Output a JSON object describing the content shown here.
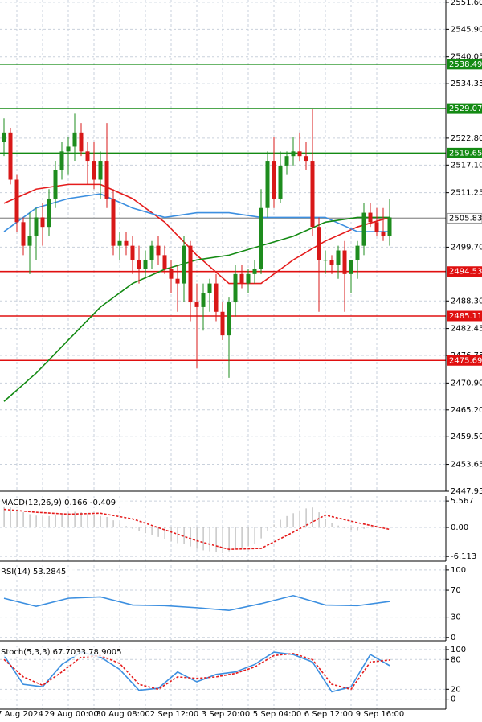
{
  "chart_data": [
    {
      "type": "candlestick",
      "categories": [
        null,
        null,
        "7 Aug 2024",
        null,
        null,
        null,
        null,
        null,
        null,
        null,
        "29 Aug 00:00",
        null,
        null,
        null,
        null,
        null,
        null,
        null,
        "30 Aug 08:00",
        null,
        null,
        null,
        null,
        null,
        null,
        null,
        "2 Sep 12:00",
        null,
        null,
        null,
        null,
        null,
        null,
        null,
        "3 Sep 20:00",
        null,
        null,
        null,
        null,
        null,
        null,
        null,
        "5 Sep 04:00",
        null,
        null,
        null,
        null,
        null,
        null,
        null,
        "6 Sep 12:00",
        null,
        null,
        null,
        null,
        null,
        null,
        null,
        "9 Sep 16:00",
        null,
        null
      ],
      "open": [
        2522,
        2524,
        2514,
        2505,
        2500,
        2502,
        2506,
        2504,
        2510,
        2516,
        2520,
        2521,
        2524,
        2520,
        2518,
        2514,
        2518,
        2510,
        2500,
        2501,
        2500,
        2497,
        2495,
        2497,
        2500,
        2498,
        2495,
        2493,
        2492,
        2500,
        2488,
        2487,
        2490,
        2492,
        2486,
        2481,
        2488,
        2494,
        2492,
        2494,
        2495,
        2508,
        2518,
        2510,
        2517,
        2519,
        2520,
        2519,
        2518,
        2504,
        2497,
        2497,
        2496,
        2499,
        2494,
        2497,
        2500,
        2507,
        2505,
        2503,
        2502
      ],
      "high": [
        2527,
        2525,
        2515,
        2506,
        2507,
        2508,
        2509,
        2512,
        2518,
        2522,
        2523,
        2528,
        2526,
        2522,
        2522,
        2520,
        2526,
        2512,
        2503,
        2503,
        2502,
        2500,
        2499,
        2501,
        2502,
        2500,
        2497,
        2496,
        2502,
        2501,
        2492,
        2492,
        2493,
        2494,
        2488,
        2489,
        2496,
        2496,
        2495,
        2497,
        2512,
        2520,
        2523,
        2520,
        2520,
        2523,
        2524,
        2522,
        2529,
        2506,
        2499,
        2498,
        2500,
        2501,
        2497,
        2501,
        2509,
        2509,
        2508,
        2508,
        2510
      ],
      "low": [
        2519,
        2513,
        2503,
        2498,
        2494,
        2497,
        2500,
        2502,
        2508,
        2514,
        2515,
        2518,
        2519,
        2513,
        2512,
        2510,
        2508,
        2498,
        2497,
        2498,
        2494,
        2492,
        2493,
        2495,
        2496,
        2494,
        2490,
        2486,
        2488,
        2484,
        2474,
        2482,
        2486,
        2484,
        2480,
        2472,
        2485,
        2491,
        2490,
        2492,
        2494,
        2506,
        2508,
        2509,
        2515,
        2517,
        2518,
        2516,
        2502,
        2486,
        2494,
        2494,
        2493,
        2486,
        2490,
        2493,
        2498,
        2504,
        2502,
        2501,
        2500
      ],
      "close": [
        2524,
        2514,
        2505,
        2500,
        2502,
        2506,
        2504,
        2510,
        2516,
        2520,
        2521,
        2524,
        2520,
        2518,
        2514,
        2518,
        2510,
        2500,
        2501,
        2500,
        2497,
        2495,
        2497,
        2500,
        2498,
        2495,
        2493,
        2492,
        2500,
        2488,
        2487,
        2490,
        2492,
        2486,
        2481,
        2488,
        2494,
        2492,
        2494,
        2495,
        2508,
        2518,
        2510,
        2517,
        2519,
        2520,
        2519,
        2518,
        2504,
        2497,
        2497,
        2496,
        2499,
        2494,
        2497,
        2500,
        2507,
        2505,
        2503,
        2502,
        2506
      ],
      "up_color": "#1e8c1e",
      "down_color": "#d81818",
      "lines": [
        {
          "color": "#e51c1c",
          "x": [
            0,
            5,
            10,
            15,
            20,
            25,
            30,
            35,
            40,
            45,
            50,
            55,
            60
          ],
          "values": [
            2509,
            2512,
            2513,
            2513,
            2510,
            2505,
            2498,
            2492,
            2492,
            2497,
            2501,
            2504,
            2506
          ]
        },
        {
          "color": "#3c8fe0",
          "x": [
            0,
            5,
            10,
            15,
            20,
            25,
            30,
            35,
            40,
            45,
            50,
            55,
            60
          ],
          "values": [
            2503,
            2508,
            2510,
            2511,
            2508,
            2506,
            2507,
            2507,
            2506,
            2506,
            2506,
            2503,
            2503
          ]
        },
        {
          "color": "#138a13",
          "x": [
            0,
            5,
            10,
            15,
            20,
            25,
            30,
            35,
            40,
            45,
            50,
            55,
            60
          ],
          "values": [
            2467,
            2473,
            2480,
            2487,
            2492,
            2495,
            2497,
            2498,
            2500,
            2502,
            2505,
            2506,
            2506
          ]
        }
      ],
      "levels": [
        {
          "value": 2538.49,
          "color": "#138a13",
          "text_color": "#ffffff"
        },
        {
          "value": 2529.07,
          "color": "#138a13",
          "text_color": "#ffffff"
        },
        {
          "value": 2519.65,
          "color": "#138a13",
          "text_color": "#ffffff"
        },
        {
          "value": 2505.83,
          "color": "#9a9a9a",
          "text_color": "#000000"
        },
        {
          "value": 2494.53,
          "color": "#e01010",
          "text_color": "#ffffff"
        },
        {
          "value": 2485.11,
          "color": "#e01010",
          "text_color": "#ffffff"
        },
        {
          "value": 2475.69,
          "color": "#e01010",
          "text_color": "#ffffff"
        }
      ],
      "ylim": [
        2447.95,
        2552.1
      ],
      "yticks": [
        {
          "value": 2551.6,
          "label": "2551.60"
        },
        {
          "value": 2545.9,
          "label": "2545.90"
        },
        2540.05,
        2534.35,
        {
          "value": 2522.8,
          "label": "2522.80"
        },
        {
          "value": 2517.1,
          "label": "2517.10"
        },
        2511.25,
        {
          "value": 2499.7,
          "label": "2499.70"
        },
        {
          "value": 2488.3,
          "label": "2488.30"
        },
        2482.45,
        2476.75,
        {
          "value": 2470.9,
          "label": "2470.90"
        },
        {
          "value": 2465.2,
          "label": "2465.20"
        },
        {
          "value": 2459.5,
          "label": "2459.50"
        },
        2453.65,
        2447.95
      ],
      "grid": true
    },
    {
      "type": "macd",
      "title": "MACD(12,26,9) 0.166 -0.409",
      "values": [
        4.5,
        4.2,
        3.8,
        3.2,
        2.8,
        2.5,
        2.3,
        2.4,
        2.6,
        2.9,
        3.1,
        3.3,
        3.2,
        3.0,
        2.7,
        2.4,
        2.2,
        1.5,
        0.8,
        0.3,
        -0.3,
        -0.8,
        -1.2,
        -1.6,
        -2.0,
        -2.4,
        -2.9,
        -3.3,
        -3.5,
        -4.0,
        -4.5,
        -4.8,
        -5.0,
        -5.2,
        -5.4,
        -5.0,
        -4.6,
        -4.2,
        -3.9,
        -3.4,
        -2.3,
        -0.8,
        0.6,
        1.6,
        2.4,
        3.0,
        3.6,
        4.0,
        4.2,
        3.2,
        1.8,
        1.0,
        0.4,
        -0.2,
        -0.5,
        -0.6,
        -0.3,
        0.1,
        0.2,
        0.2,
        0.166
      ],
      "color": "#b8b8b8",
      "signal": {
        "color": "#e51c1c",
        "x": [
          0,
          5,
          10,
          15,
          20,
          25,
          30,
          35,
          40,
          45,
          50,
          55,
          60
        ],
        "values": [
          3.8,
          3.2,
          2.8,
          3.0,
          1.8,
          -0.5,
          -2.8,
          -4.6,
          -4.4,
          -1.0,
          2.6,
          1.0,
          -0.409
        ]
      },
      "ylim": [
        -7.1,
        6.6
      ],
      "yticks": [
        5.567,
        {
          "value": 0,
          "label": "0.00"
        },
        -6.113
      ]
    },
    {
      "type": "line",
      "title": "RSI(14) 53.2845",
      "series": [
        {
          "color": "#3c8fe0",
          "x": [
            0,
            5,
            10,
            15,
            20,
            25,
            30,
            35,
            40,
            45,
            50,
            55,
            60
          ],
          "values": [
            58,
            46,
            58,
            60,
            48,
            47,
            44,
            40,
            50,
            62,
            48,
            47,
            53.28
          ]
        }
      ],
      "ylim": [
        -5,
        107
      ],
      "yticks": [
        100,
        70,
        30,
        0
      ]
    },
    {
      "type": "line",
      "title": "Stoch(5,3,3) 67.7033 78.9005",
      "series": [
        {
          "color": "#3c8fe0",
          "x": [
            0,
            3,
            6,
            9,
            12,
            15,
            18,
            21,
            24,
            27,
            30,
            33,
            36,
            39,
            42,
            45,
            48,
            51,
            54,
            57,
            60
          ],
          "values": [
            88,
            30,
            25,
            70,
            95,
            85,
            60,
            18,
            22,
            55,
            35,
            50,
            55,
            70,
            95,
            90,
            75,
            15,
            25,
            90,
            67.7
          ]
        },
        {
          "color": "#e51c1c",
          "dash": true,
          "x": [
            0,
            3,
            6,
            9,
            12,
            15,
            18,
            21,
            24,
            27,
            30,
            33,
            36,
            39,
            42,
            45,
            48,
            51,
            54,
            57,
            60
          ],
          "values": [
            80,
            45,
            28,
            55,
            85,
            88,
            72,
            30,
            20,
            45,
            42,
            45,
            52,
            65,
            88,
            92,
            80,
            30,
            20,
            75,
            78.9
          ]
        }
      ],
      "ylim": [
        -20,
        108
      ],
      "yticks": [
        100,
        80,
        20,
        0
      ]
    }
  ]
}
